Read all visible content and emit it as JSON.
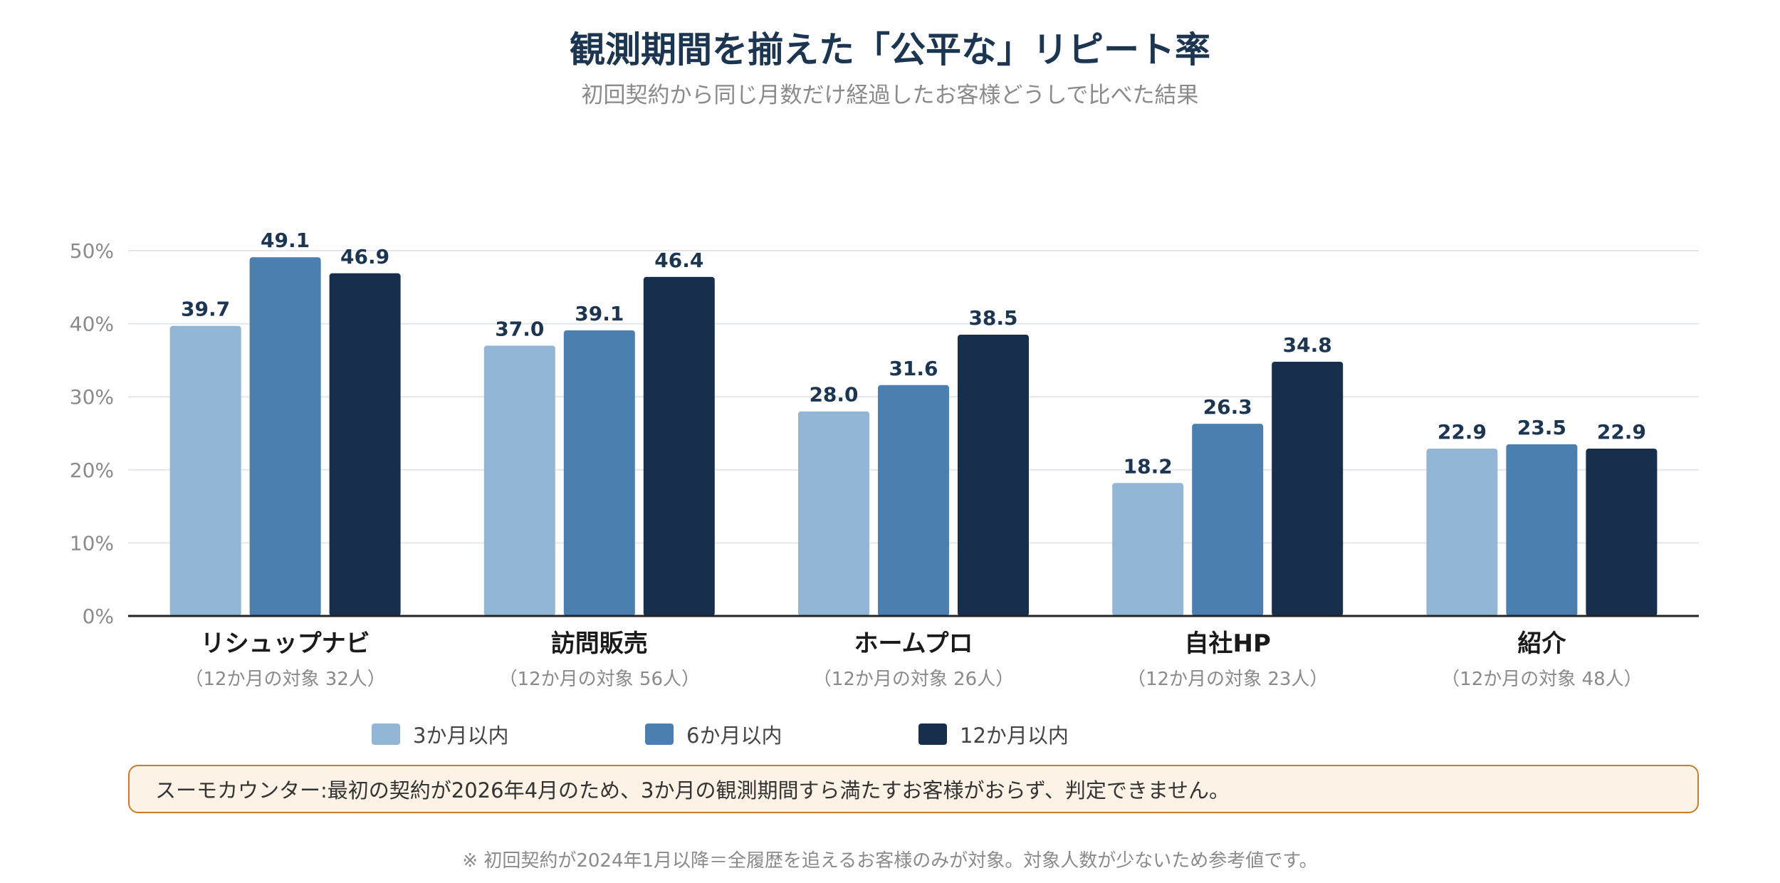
{
  "title": "観測期間を揃えた「公平な」リピート率",
  "subtitle": "初回契約から同じ月数だけ経過したお客様どうしで比べた結果",
  "notice": "スーモカウンター:最初の契約が2026年4月のため、3か月の観測期間すら満たすお客様がおらず、判定できません。",
  "footnote": "※ 初回契約が2024年1月以降＝全履歴を追えるお客様のみが対象。対象人数が少ないため参考値です。",
  "colors": {
    "s3": "#94b6d6",
    "s6": "#4a7fb0",
    "s12": "#172f4d",
    "axis": "#222222",
    "grid": "#e3e6ea"
  },
  "chart_data": {
    "type": "bar",
    "categories": [
      "リシュップナビ",
      "訪問販売",
      "ホームプロ",
      "自社HP",
      "紹介"
    ],
    "category_notes": [
      "（12か月の対象 32人）",
      "（12か月の対象 56人）",
      "（12か月の対象 26人）",
      "（12か月の対象 23人）",
      "（12か月の対象 48人）"
    ],
    "series": [
      {
        "name": "3か月以内",
        "values": [
          39.7,
          37.0,
          28.0,
          18.2,
          22.9
        ]
      },
      {
        "name": "6か月以内",
        "values": [
          49.1,
          39.1,
          31.6,
          26.3,
          23.5
        ]
      },
      {
        "name": "12か月以内",
        "values": [
          46.9,
          46.4,
          38.5,
          34.8,
          22.9
        ]
      }
    ],
    "ylim": [
      0,
      50
    ],
    "yticks": [
      "0%",
      "10%",
      "20%",
      "30%",
      "40%",
      "50%"
    ],
    "grid": true,
    "legend": "bottom"
  }
}
